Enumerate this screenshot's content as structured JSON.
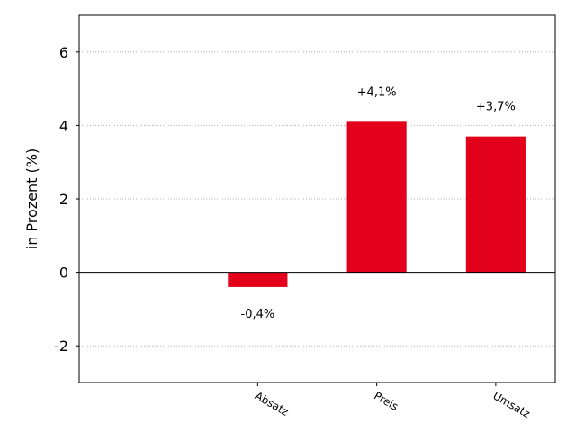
{
  "chart_data": {
    "type": "bar",
    "title": "",
    "xlabel": "",
    "ylabel": "in Prozent (%)",
    "categories": [
      "Absatz",
      "Preis",
      "Umsatz"
    ],
    "values": [
      -0.4,
      4.1,
      3.7
    ],
    "data_labels": [
      "-0,4%",
      "+4,1%",
      "+3,7%"
    ],
    "ylim": [
      -3,
      7
    ],
    "yticks": [
      -2,
      0,
      2,
      4,
      6
    ],
    "ytick_labels": [
      "-2",
      "0",
      "2",
      "4",
      "6"
    ],
    "xlim": [
      -0.5,
      3.5
    ],
    "x_positions": [
      1,
      2,
      3
    ],
    "bar_color": "#e2001a",
    "grid": "horizontal dotted",
    "zero_line": true,
    "legend": false
  }
}
